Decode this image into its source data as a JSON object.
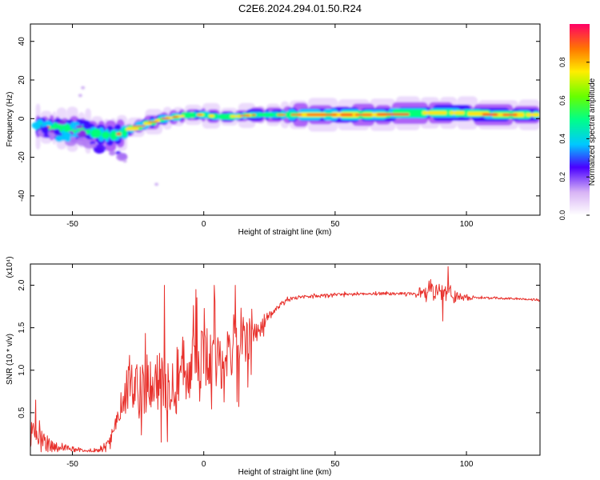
{
  "title": "C2E6.2024.294.01.50.R24",
  "chart_data": [
    {
      "type": "heatmap",
      "xlabel": "Height of straight line (km)",
      "ylabel": "Frequency (Hz)",
      "xlim": [
        -66,
        128
      ],
      "ylim": [
        -50,
        49
      ],
      "xticks": [
        -50,
        0,
        50,
        100
      ],
      "yticks": [
        -40,
        -20,
        0,
        20,
        40
      ],
      "colorbar": {
        "label": "Normalized spectral amplitude",
        "range": [
          0,
          1
        ],
        "ticks": [
          "0.0",
          "0.2",
          "0.4",
          "0.6",
          "0.8"
        ]
      },
      "ridge": {
        "x": [
          -64,
          -55,
          -45,
          -40,
          -35,
          -30,
          -25,
          -20,
          -15,
          -10,
          -5,
          0,
          5,
          10,
          20,
          30,
          40,
          50,
          60,
          70,
          80,
          90,
          100,
          110,
          120,
          128
        ],
        "freq": [
          -4,
          -5,
          -6,
          -8,
          -9,
          -7,
          -4,
          -2,
          0,
          1,
          2,
          2,
          1,
          1,
          2,
          2,
          2,
          2,
          2,
          2,
          3,
          3,
          3,
          2,
          2,
          2
        ]
      },
      "branch": {
        "x": [
          -62,
          -55,
          -48,
          -42,
          -36,
          -31,
          -28
        ],
        "freq": [
          -7,
          -9,
          -12,
          -14,
          -17,
          -19,
          -21
        ]
      }
    },
    {
      "type": "line",
      "xlabel": "Height of straight line (km)",
      "ylabel": "SNR (10 * v/v)",
      "y_multiplier": "(x10⁴)",
      "xlim": [
        -66,
        128
      ],
      "ylim": [
        0,
        2.25
      ],
      "xticks": [
        -50,
        0,
        50,
        100
      ],
      "yticks": [
        "0.5",
        "1.0",
        "1.5",
        "2.0"
      ],
      "color": "#e8312c",
      "profile": {
        "x": [
          -66,
          -60,
          -55,
          -50,
          -45,
          -40,
          -37,
          -34,
          -31,
          -28,
          -25,
          -20,
          -15,
          -10,
          -5,
          0,
          5,
          10,
          15,
          20,
          25,
          30,
          35,
          40,
          50,
          60,
          70,
          80,
          85,
          90,
          93,
          96,
          100,
          110,
          120,
          128
        ],
        "y": [
          0.25,
          0.15,
          0.1,
          0.08,
          0.06,
          0.05,
          0.1,
          0.3,
          0.65,
          0.85,
          0.75,
          0.8,
          0.85,
          1.0,
          1.05,
          1.1,
          1.15,
          1.25,
          1.3,
          1.45,
          1.65,
          1.8,
          1.85,
          1.87,
          1.89,
          1.9,
          1.9,
          1.9,
          1.9,
          1.92,
          1.95,
          1.85,
          1.85,
          1.85,
          1.84,
          1.83
        ]
      },
      "noise": {
        "x": [
          -66,
          -62,
          -50,
          -40,
          -34,
          -30,
          -25,
          -20,
          -10,
          0,
          10,
          15,
          20,
          25,
          30,
          40,
          80,
          84,
          90,
          95,
          100,
          104,
          128
        ],
        "amp": [
          0.2,
          0.15,
          0.03,
          0.03,
          0.1,
          0.3,
          0.4,
          0.45,
          0.5,
          0.5,
          0.5,
          0.45,
          0.2,
          0.08,
          0.03,
          0.02,
          0.02,
          0.08,
          0.15,
          0.1,
          0.04,
          0.015,
          0.015
        ]
      }
    }
  ]
}
